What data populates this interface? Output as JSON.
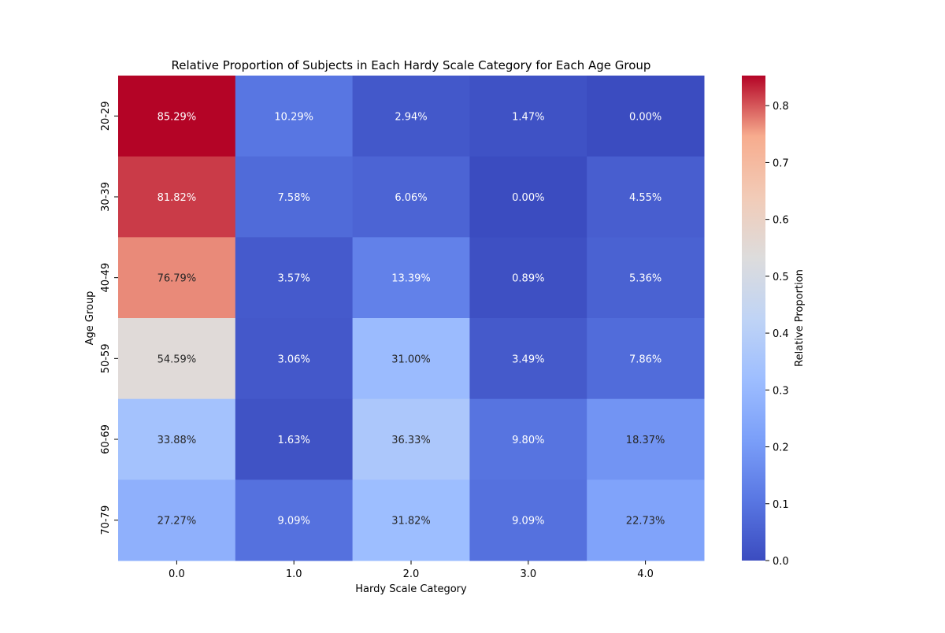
{
  "chart_data": {
    "type": "heatmap",
    "title": "Relative Proportion of Subjects in Each Hardy Scale Category for Each Age Group",
    "xlabel": "Hardy Scale Category",
    "ylabel": "Age Group",
    "x_categories": [
      "0.0",
      "1.0",
      "2.0",
      "3.0",
      "4.0"
    ],
    "y_categories": [
      "20-29",
      "30-39",
      "40-49",
      "50-59",
      "60-69",
      "70-79"
    ],
    "values": [
      [
        0.8529,
        0.1029,
        0.0294,
        0.0147,
        0.0
      ],
      [
        0.8182,
        0.0758,
        0.0606,
        0.0,
        0.0455
      ],
      [
        0.7679,
        0.0357,
        0.1339,
        0.0089,
        0.0536
      ],
      [
        0.5459,
        0.0306,
        0.31,
        0.0349,
        0.0786
      ],
      [
        0.3388,
        0.0163,
        0.3633,
        0.098,
        0.1837
      ],
      [
        0.2727,
        0.0909,
        0.3182,
        0.0909,
        0.2273
      ]
    ],
    "annotations": [
      [
        "85.29%",
        "10.29%",
        "2.94%",
        "1.47%",
        "0.00%"
      ],
      [
        "81.82%",
        "7.58%",
        "6.06%",
        "0.00%",
        "4.55%"
      ],
      [
        "76.79%",
        "3.57%",
        "13.39%",
        "0.89%",
        "5.36%"
      ],
      [
        "54.59%",
        "3.06%",
        "31.00%",
        "3.49%",
        "7.86%"
      ],
      [
        "33.88%",
        "1.63%",
        "36.33%",
        "9.80%",
        "18.37%"
      ],
      [
        "27.27%",
        "9.09%",
        "31.82%",
        "9.09%",
        "22.73%"
      ]
    ],
    "colormap": "coolwarm",
    "colorbar": {
      "label": "Relative Proportion",
      "ticks": [
        "0.0",
        "0.1",
        "0.2",
        "0.3",
        "0.4",
        "0.5",
        "0.6",
        "0.7",
        "0.8"
      ],
      "range": [
        0,
        0.8529
      ]
    }
  }
}
